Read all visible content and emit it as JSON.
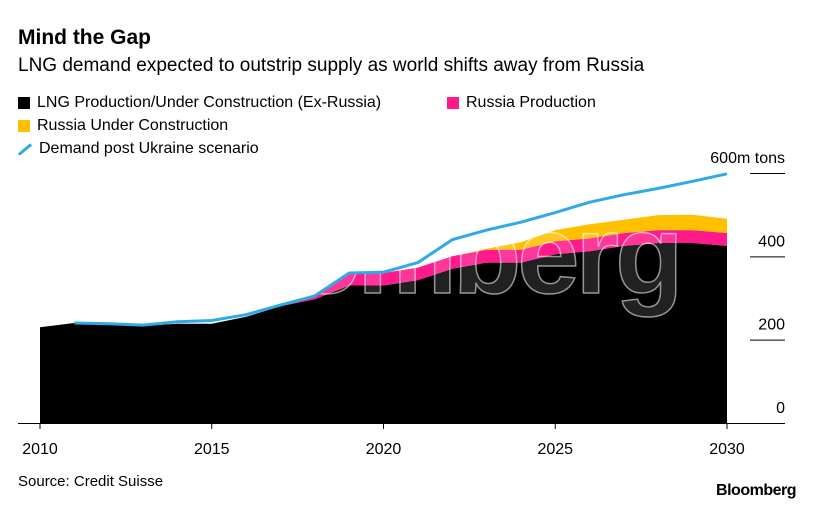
{
  "title": "Mind the Gap",
  "subtitle": "LNG demand expected to outstrip supply as world shifts away from Russia",
  "source": "Source: Credit Suisse",
  "brand": "Bloomberg",
  "watermark": "Bloomberg",
  "colors": {
    "ex_russia": "#000000",
    "russia_production": "#ff1a8c",
    "russia_under_construction": "#ffc000",
    "demand": "#2eaae6",
    "watermark": "#ffffff"
  },
  "legend": [
    {
      "label": "LNG Production/Under Construction (Ex-Russia)",
      "color": "#000000",
      "kind": "swatch"
    },
    {
      "label": "Russia Production",
      "color": "#ff1a8c",
      "kind": "swatch"
    },
    {
      "label": "Russia Under Construction",
      "color": "#ffc000",
      "kind": "swatch"
    },
    {
      "label": "Demand post Ukraine scenario",
      "color": "#2eaae6",
      "kind": "line"
    }
  ],
  "chart_data": {
    "type": "area",
    "title": "Mind the Gap",
    "subtitle": "LNG demand expected to outstrip supply as world shifts away from Russia",
    "x": [
      2010,
      2011,
      2012,
      2013,
      2014,
      2015,
      2016,
      2017,
      2018,
      2019,
      2020,
      2021,
      2022,
      2023,
      2024,
      2025,
      2026,
      2027,
      2028,
      2029,
      2030
    ],
    "xlim": [
      2010,
      2030
    ],
    "ylim": [
      0,
      600
    ],
    "y_unit": "m tons",
    "x_ticks": [
      2010,
      2015,
      2020,
      2025,
      2030
    ],
    "y_ticks": [
      {
        "value": 0,
        "label": "0"
      },
      {
        "value": 200,
        "label": "200"
      },
      {
        "value": 400,
        "label": "400"
      },
      {
        "value": 600,
        "label": "600m tons"
      }
    ],
    "stacked": true,
    "series": [
      {
        "name": "LNG Production/Under Construction (Ex-Russia)",
        "type": "area",
        "values": [
          230,
          240,
          237,
          233,
          238,
          238,
          255,
          280,
          297,
          330,
          330,
          343,
          370,
          385,
          385,
          405,
          412,
          425,
          432,
          432,
          425
        ]
      },
      {
        "name": "Russia Production",
        "type": "area",
        "values": [
          0,
          0,
          0,
          0,
          0,
          0,
          0,
          0,
          8,
          30,
          30,
          30,
          30,
          31,
          31,
          31,
          31,
          31,
          31,
          31,
          31
        ]
      },
      {
        "name": "Russia Under Construction",
        "type": "area",
        "values": [
          0,
          0,
          0,
          0,
          0,
          0,
          0,
          0,
          0,
          0,
          0,
          0,
          0,
          2,
          18,
          27,
          34,
          32,
          36,
          37,
          34
        ]
      },
      {
        "name": "Demand post Ukraine scenario",
        "type": "line",
        "values": [
          null,
          240,
          238,
          235,
          243,
          246,
          260,
          283,
          305,
          360,
          362,
          385,
          440,
          463,
          482,
          505,
          530,
          548,
          563,
          580,
          598
        ]
      }
    ],
    "grid": false,
    "legend_position": "top-left"
  }
}
